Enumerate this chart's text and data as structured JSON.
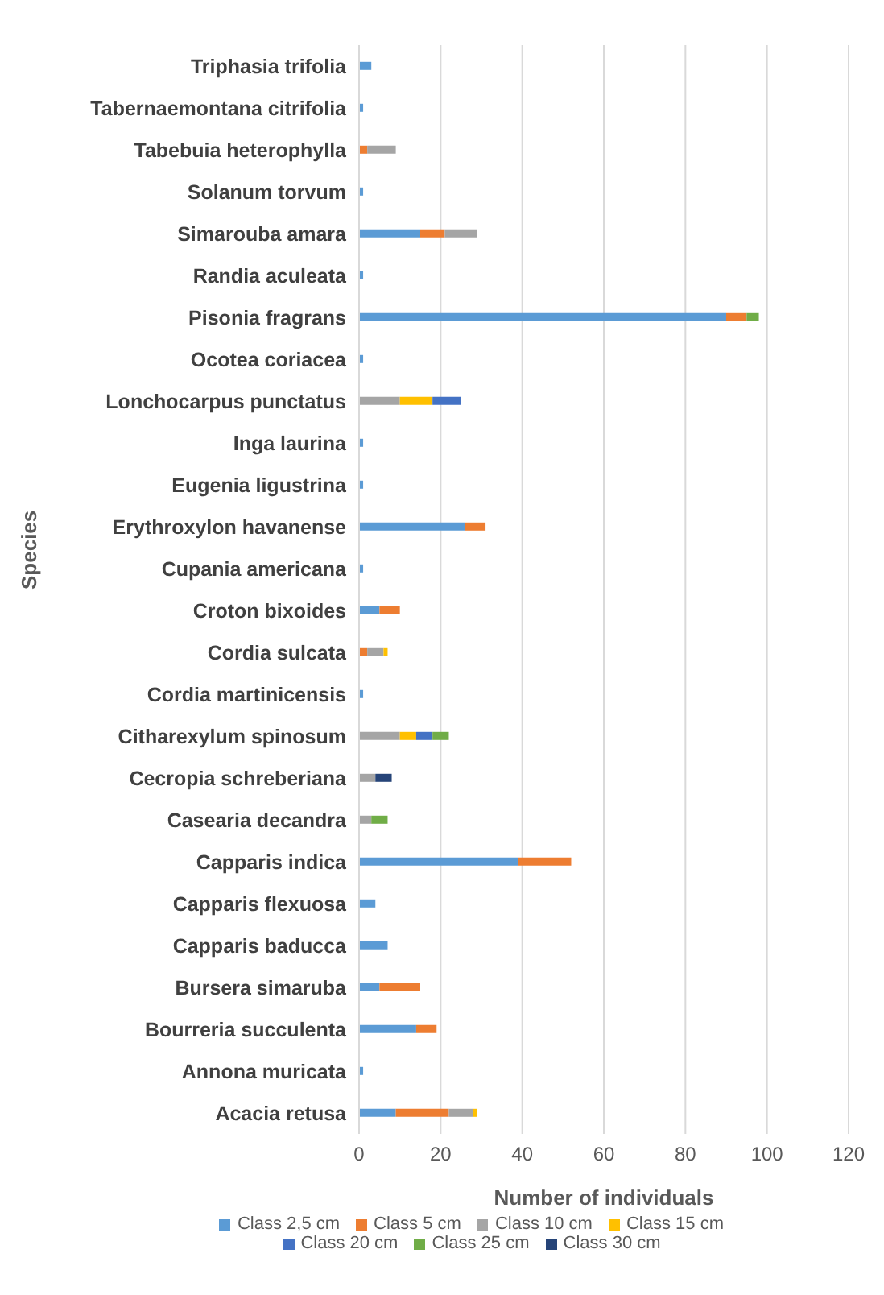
{
  "chart_data": {
    "type": "bar",
    "orientation": "horizontal",
    "stacked": true,
    "xlabel": "Number of individuals",
    "ylabel": "Species",
    "categories": [
      "Triphasia trifolia",
      "Tabernaemontana citrifolia",
      "Tabebuia heterophylla",
      "Solanum torvum",
      "Simarouba amara",
      "Randia aculeata",
      "Pisonia fragrans",
      "Ocotea coriacea",
      "Lonchocarpus punctatus",
      "Inga laurina",
      "Eugenia ligustrina",
      "Erythroxylon havanense",
      "Cupania americana",
      "Croton bixoides",
      "Cordia sulcata",
      "Cordia martinicensis",
      "Citharexylum spinosum",
      "Cecropia schreberiana",
      "Casearia decandra",
      "Capparis indica",
      "Capparis flexuosa",
      "Capparis baducca",
      "Bursera simaruba",
      "Bourreria succulenta",
      "Annona muricata",
      "Acacia retusa"
    ],
    "series": [
      {
        "name": "Class 2,5 cm",
        "color": "#5b9bd5",
        "values": [
          3,
          1,
          null,
          1,
          15,
          1,
          90,
          1,
          null,
          1,
          1,
          26,
          1,
          5,
          null,
          1,
          null,
          null,
          null,
          39,
          4,
          7,
          5,
          14,
          1,
          9
        ]
      },
      {
        "name": "Class 5 cm",
        "color": "#ed7d31",
        "values": [
          null,
          null,
          2,
          null,
          6,
          null,
          5,
          null,
          null,
          null,
          null,
          5,
          null,
          5,
          2,
          null,
          null,
          null,
          null,
          13,
          null,
          null,
          10,
          5,
          null,
          13
        ]
      },
      {
        "name": "Class 10 cm",
        "color": "#a5a5a5",
        "values": [
          null,
          null,
          7,
          null,
          8,
          null,
          null,
          null,
          10,
          null,
          null,
          null,
          null,
          null,
          4,
          null,
          10,
          4,
          3,
          null,
          null,
          null,
          null,
          null,
          null,
          6
        ]
      },
      {
        "name": "Class 15 cm",
        "color": "#ffc000",
        "values": [
          null,
          null,
          null,
          null,
          null,
          null,
          null,
          null,
          8,
          null,
          null,
          null,
          null,
          null,
          1,
          null,
          4,
          null,
          null,
          null,
          null,
          null,
          null,
          null,
          null,
          1
        ]
      },
      {
        "name": "Class 20 cm",
        "color": "#4472c4",
        "values": [
          null,
          null,
          null,
          null,
          null,
          null,
          null,
          null,
          7,
          null,
          null,
          null,
          null,
          null,
          null,
          null,
          4,
          null,
          null,
          null,
          null,
          null,
          null,
          null,
          null,
          null
        ]
      },
      {
        "name": "Class 25 cm",
        "color": "#70ad47",
        "values": [
          null,
          null,
          null,
          null,
          null,
          null,
          3,
          null,
          null,
          null,
          null,
          null,
          null,
          null,
          null,
          null,
          4,
          null,
          4,
          null,
          null,
          null,
          null,
          null,
          null,
          null
        ]
      },
      {
        "name": "Class 30 cm",
        "color": "#264478",
        "values": [
          null,
          null,
          null,
          null,
          null,
          null,
          null,
          null,
          null,
          null,
          null,
          null,
          null,
          null,
          null,
          null,
          null,
          4,
          null,
          null,
          null,
          null,
          null,
          null,
          null,
          null
        ]
      }
    ],
    "xlim": [
      0,
      120
    ],
    "xticks": [
      0,
      20,
      40,
      60,
      80,
      100,
      120
    ],
    "grid": "x",
    "legend": "bottom"
  }
}
